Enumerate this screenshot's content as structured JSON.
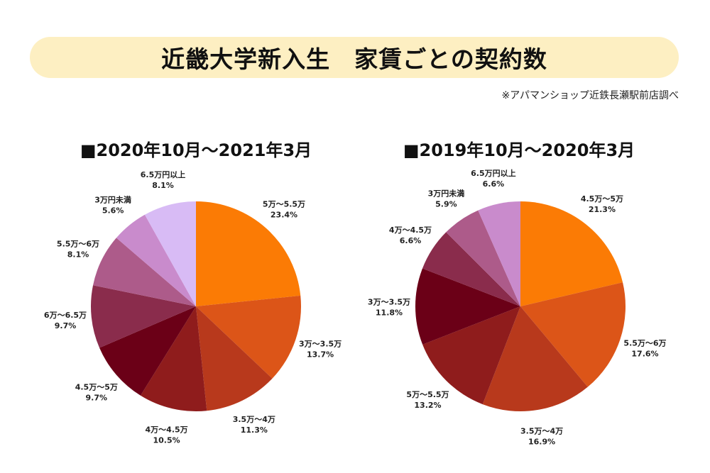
{
  "header": {
    "title": "近畿大学新入生　家賃ごとの契約数",
    "source_note": "※アパマンショップ近鉄長瀬駅前店調べ"
  },
  "chart_data": [
    {
      "type": "pie",
      "title": "■2020年10月～2021年3月",
      "slices": [
        {
          "label": "5万～5.5万",
          "value": 23.4,
          "value_label": "23.4%",
          "color": "#fb7b05"
        },
        {
          "label": "3万～3.5万",
          "value": 13.7,
          "value_label": "13.7%",
          "color": "#dc5518"
        },
        {
          "label": "3.5万～4万",
          "value": 11.3,
          "value_label": "11.3%",
          "color": "#b8391c"
        },
        {
          "label": "4万～4.5万",
          "value": 10.5,
          "value_label": "10.5%",
          "color": "#8f1c1c"
        },
        {
          "label": "4.5万～5万",
          "value": 9.7,
          "value_label": "9.7%",
          "color": "#6b0017"
        },
        {
          "label": "6万～6.5万",
          "value": 9.7,
          "value_label": "9.7%",
          "color": "#8a2c4c"
        },
        {
          "label": "5.5万～6万",
          "value": 8.1,
          "value_label": "8.1%",
          "color": "#ad5b8a"
        },
        {
          "label": "3万円未満",
          "value": 5.6,
          "value_label": "5.6%",
          "color": "#c98bcc"
        },
        {
          "label": "6.5万円以上",
          "value": 8.1,
          "value_label": "8.1%",
          "color": "#d8bbf5"
        }
      ]
    },
    {
      "type": "pie",
      "title": "■2019年10月～2020年3月",
      "slices": [
        {
          "label": "4.5万～5万",
          "value": 21.3,
          "value_label": "21.3%",
          "color": "#fb7b05"
        },
        {
          "label": "5.5万～6万",
          "value": 17.6,
          "value_label": "17.6%",
          "color": "#dc5518"
        },
        {
          "label": "3.5万～4万",
          "value": 16.9,
          "value_label": "16.9%",
          "color": "#b8391c"
        },
        {
          "label": "5万～5.5万",
          "value": 13.2,
          "value_label": "13.2%",
          "color": "#8f1c1c"
        },
        {
          "label": "3万～3.5万",
          "value": 11.8,
          "value_label": "11.8%",
          "color": "#6b0017"
        },
        {
          "label": "4万～4.5万",
          "value": 6.6,
          "value_label": "6.6%",
          "color": "#8a2c4c"
        },
        {
          "label": "3万円未満",
          "value": 5.9,
          "value_label": "5.9%",
          "color": "#ad5b8a"
        },
        {
          "label": "6.5万円以上",
          "value": 6.6,
          "value_label": "6.6%",
          "color": "#c98bcc"
        }
      ]
    }
  ]
}
